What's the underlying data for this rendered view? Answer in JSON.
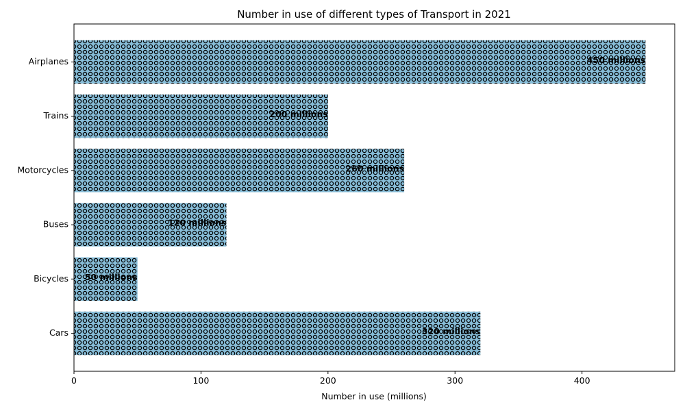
{
  "chart_data": {
    "type": "bar",
    "orientation": "horizontal",
    "title": "Number in use of different types of Transport in 2021",
    "xlabel": "Number in use (millions)",
    "ylabel": "",
    "categories": [
      "Cars",
      "Bicycles",
      "Buses",
      "Motorcycles",
      "Trains",
      "Airplanes"
    ],
    "values": [
      320,
      50,
      120,
      260,
      200,
      450
    ],
    "bar_labels": [
      "320 millions",
      "50 millions",
      "120 millions",
      "260 millions",
      "200 millions",
      "450 millions"
    ],
    "xlim": [
      0,
      473
    ],
    "xticks": [
      0,
      100,
      200,
      300,
      400
    ],
    "grid": false,
    "bar_color": "#87bdd8",
    "hatch": "small circles",
    "edge_color": "#000000"
  }
}
